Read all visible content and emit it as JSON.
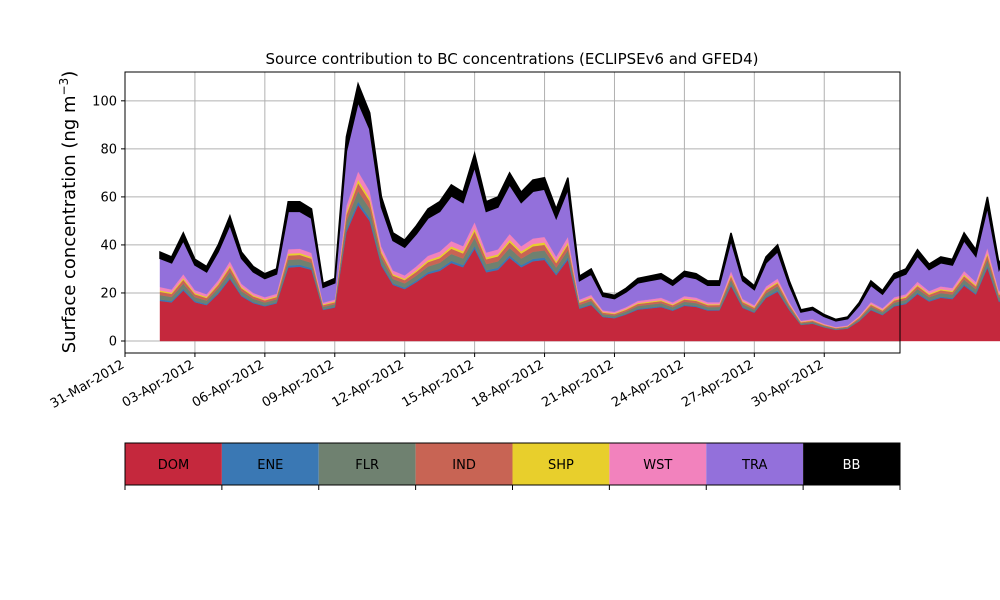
{
  "chart_data": {
    "type": "area",
    "title": "Source contribution to BC concentrations (ECLIPSEv6 and GFED4)",
    "ylabel": "Surface concentration (ng m",
    "ylabel_sup": "−3",
    "ylabel_close": ")",
    "xlabel": "",
    "ylim": [
      -5,
      112
    ],
    "yticks": [
      0,
      20,
      40,
      60,
      80,
      100
    ],
    "xlim": [
      "2012-03-31T00:00",
      "2012-05-03T06:00"
    ],
    "xticks": [
      "31-Mar-2012",
      "03-Apr-2012",
      "06-Apr-2012",
      "09-Apr-2012",
      "12-Apr-2012",
      "15-Apr-2012",
      "18-Apr-2012",
      "21-Apr-2012",
      "24-Apr-2012",
      "27-Apr-2012",
      "30-Apr-2012"
    ],
    "grid": true,
    "legend_placement": "bottom colorbar",
    "x_start": "2012-04-01T12:00",
    "x_step_hours": 12,
    "total": [
      37,
      35,
      45,
      34,
      31,
      40,
      52,
      37,
      31,
      28,
      30,
      58,
      58,
      55,
      24,
      26,
      85,
      107,
      95,
      60,
      45,
      42,
      48,
      55,
      58,
      65,
      62,
      78,
      58,
      60,
      70,
      62,
      67,
      68,
      55,
      68,
      27,
      30,
      20,
      19,
      22,
      26,
      27,
      28,
      25,
      29,
      28,
      25,
      25,
      45,
      27,
      23,
      35,
      40,
      25,
      13,
      14,
      11,
      9,
      10,
      16,
      25,
      21,
      28,
      30,
      38,
      32,
      35,
      34,
      45,
      38,
      60,
      32,
      44,
      46,
      36,
      35,
      30,
      29,
      12,
      16,
      30,
      36,
      34,
      30,
      32,
      32,
      26,
      24,
      27,
      30,
      34,
      30,
      25,
      30,
      22,
      15,
      17,
      26,
      22,
      22,
      34,
      73,
      60,
      88,
      92,
      78,
      64,
      54,
      45,
      36,
      31,
      26,
      19,
      25,
      28,
      30,
      41,
      48,
      40,
      44,
      44,
      43,
      42,
      38,
      30,
      38,
      35,
      30,
      28,
      35,
      35,
      36,
      32,
      36,
      30,
      25,
      40,
      42,
      20,
      10,
      7,
      47,
      25,
      20,
      25,
      24,
      20,
      28,
      32,
      36,
      32,
      58,
      50,
      40,
      33,
      33,
      30,
      25,
      20,
      24,
      30,
      34,
      32,
      20,
      16,
      13,
      15,
      23,
      22,
      28,
      58,
      56,
      60,
      58,
      56,
      52,
      45,
      48,
      45,
      44,
      42,
      46,
      43,
      35,
      50,
      94,
      40,
      20,
      18,
      23,
      18,
      15,
      25,
      22,
      14,
      16,
      20,
      20,
      18,
      15,
      20
    ],
    "series": [
      {
        "name": "DOM",
        "color": "#c5283d",
        "shares": [
          0.42,
          0.62,
          0.5,
          0.52,
          0.55,
          0.55,
          0.5,
          0.55,
          0.5,
          0.25,
          0.55,
          0.62,
          0.45,
          0.5,
          0.55,
          0.52
        ]
      },
      {
        "name": "ENE",
        "color": "#3a78b4",
        "shares": [
          0.015
        ]
      },
      {
        "name": "FLR",
        "color": "#6f8170",
        "shares": [
          0.045
        ]
      },
      {
        "name": "IND",
        "color": "#c86454",
        "shares": [
          0.035
        ]
      },
      {
        "name": "SHP",
        "color": "#e8cf2c",
        "shares": [
          0.015
        ]
      },
      {
        "name": "WST",
        "color": "#f282bd",
        "shares": [
          0.035
        ]
      },
      {
        "name": "TRA",
        "color": "#9370db",
        "shares": [
          0.3
        ]
      },
      {
        "name": "BB",
        "color": "#000000",
        "shares": [
          0.07
        ]
      }
    ],
    "legend": [
      {
        "name": "DOM",
        "color": "#c5283d",
        "text_color": "#000000"
      },
      {
        "name": "ENE",
        "color": "#3a78b4",
        "text_color": "#000000"
      },
      {
        "name": "FLR",
        "color": "#6f8170",
        "text_color": "#000000"
      },
      {
        "name": "IND",
        "color": "#c86454",
        "text_color": "#000000"
      },
      {
        "name": "SHP",
        "color": "#e8cf2c",
        "text_color": "#000000"
      },
      {
        "name": "WST",
        "color": "#f282bd",
        "text_color": "#000000"
      },
      {
        "name": "TRA",
        "color": "#9370db",
        "text_color": "#000000"
      },
      {
        "name": "BB",
        "color": "#000000",
        "text_color": "#ffffff"
      }
    ]
  }
}
